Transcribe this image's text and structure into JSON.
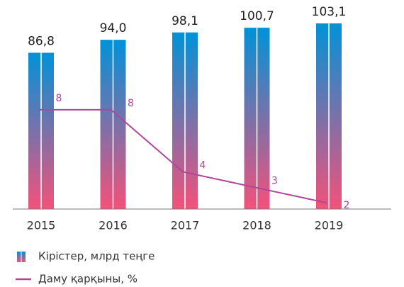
{
  "chart_data": {
    "type": "bar",
    "categories": [
      "2015",
      "2016",
      "2017",
      "2018",
      "2019"
    ],
    "series": [
      {
        "name": "Кірістер, млрд теңге",
        "type": "bar",
        "gradient": [
          "#0092d8",
          "#f4517a"
        ],
        "values": [
          86.8,
          94.0,
          98.1,
          100.7,
          103.1
        ],
        "value_labels": [
          "86,8",
          "94,0",
          "98,1",
          "100,7",
          "103,1"
        ]
      },
      {
        "name": "Даму қарқыны, %",
        "type": "line",
        "axis": "y2",
        "color": "#b0469b",
        "values": [
          8,
          8,
          4,
          3,
          2
        ]
      }
    ],
    "ylim": [
      0,
      104.3
    ],
    "y2lim": [
      1.6,
      13.7
    ]
  }
}
